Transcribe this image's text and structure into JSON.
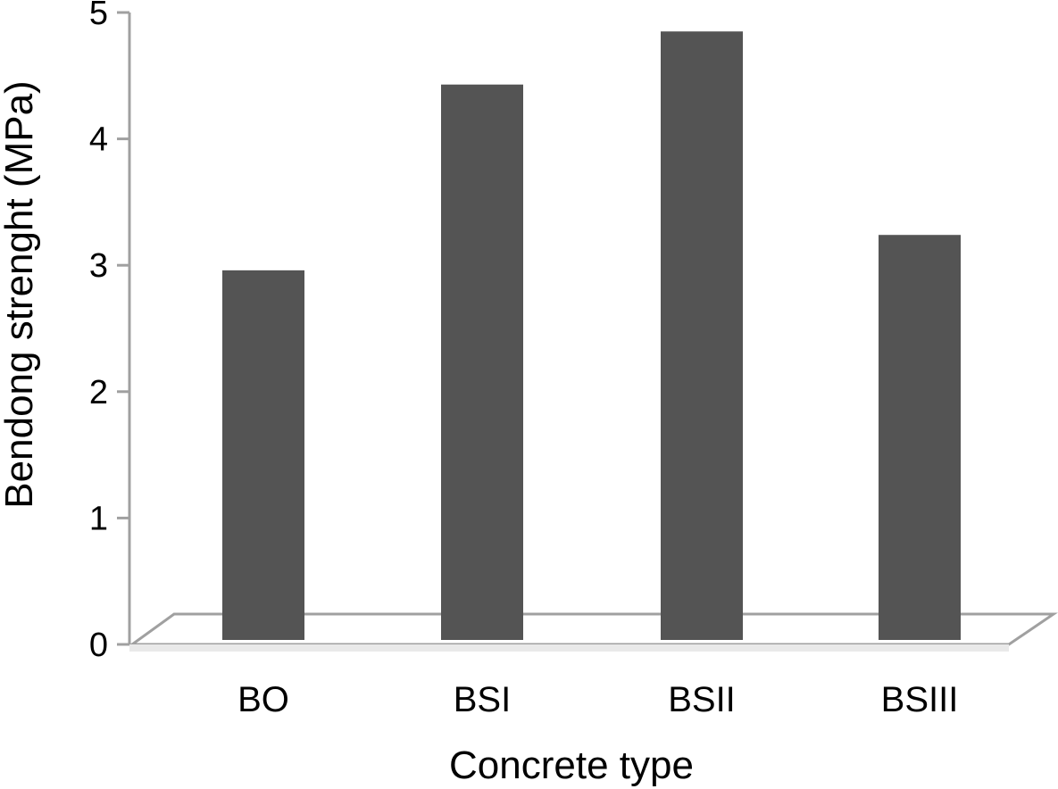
{
  "chart_data": {
    "type": "bar",
    "title": "",
    "xlabel": "Concrete type",
    "ylabel": "Bendong strenght (MPa)",
    "categories": [
      "BO",
      "BSI",
      "BSII",
      "BSIII"
    ],
    "values": [
      2.96,
      4.43,
      4.85,
      3.24
    ],
    "ylim": [
      0,
      5
    ],
    "yticks": [
      "0",
      "1",
      "2",
      "3",
      "4",
      "5"
    ],
    "grid": false,
    "legend": "none",
    "bar_color": "#545454",
    "axis_color": "#a0a0a0"
  }
}
